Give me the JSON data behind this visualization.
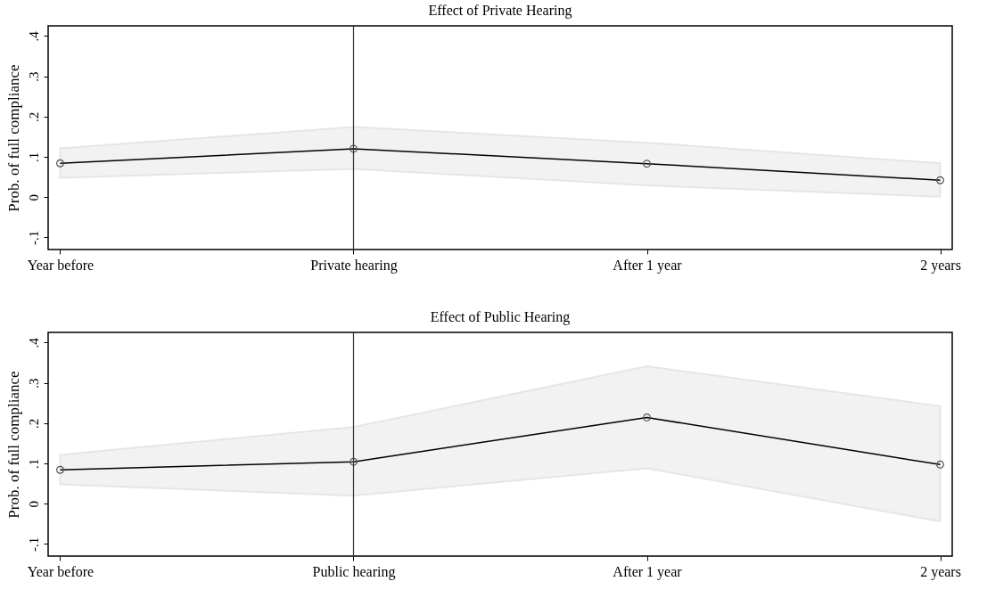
{
  "chart_data": [
    {
      "type": "line",
      "title": "Effect of Private Hearing",
      "ylabel": "Prob. of full compliance",
      "categories": [
        "Year before",
        "Private hearing",
        "After 1 year",
        "2 years"
      ],
      "series": [
        {
          "color": "#000000",
          "values": [
            0.084,
            0.12,
            0.083,
            0.042
          ],
          "lower": [
            0.048,
            0.07,
            0.029,
            0.001
          ],
          "upper": [
            0.121,
            0.174,
            0.135,
            0.084
          ]
        }
      ],
      "ylim": [
        -0.13,
        0.425
      ],
      "yticks": [
        {
          "value": -0.1,
          "label": "-.1"
        },
        0,
        {
          "value": 0.1,
          "label": ".1"
        },
        {
          "value": 0.2,
          "label": ".2"
        },
        {
          "value": 0.3,
          "label": ".3"
        },
        {
          "value": 0.4,
          "label": ".4"
        }
      ],
      "ref_lines": [
        {
          "axis": "x",
          "value": "Private hearing",
          "color": "#333333"
        }
      ],
      "marker": "circle",
      "line_style": "solid"
    },
    {
      "type": "line",
      "title": "Effect of Public Hearing",
      "ylabel": "Prob. of full compliance",
      "categories": [
        "Year before",
        "Public hearing",
        "After 1 year",
        "2 years"
      ],
      "series": [
        {
          "color": "#000000",
          "values": [
            0.084,
            0.104,
            0.214,
            0.097
          ],
          "lower": [
            0.048,
            0.02,
            0.088,
            -0.044
          ],
          "upper": [
            0.121,
            0.19,
            0.341,
            0.242
          ]
        }
      ],
      "ylim": [
        -0.13,
        0.425
      ],
      "yticks": [
        {
          "value": -0.1,
          "label": "-.1"
        },
        0,
        {
          "value": 0.1,
          "label": ".1"
        },
        {
          "value": 0.2,
          "label": ".2"
        },
        {
          "value": 0.3,
          "label": ".3"
        },
        {
          "value": 0.4,
          "label": ".4"
        }
      ],
      "ref_lines": [
        {
          "axis": "x",
          "value": "Public hearing",
          "color": "#333333"
        }
      ],
      "marker": "circle",
      "line_style": "solid"
    }
  ]
}
